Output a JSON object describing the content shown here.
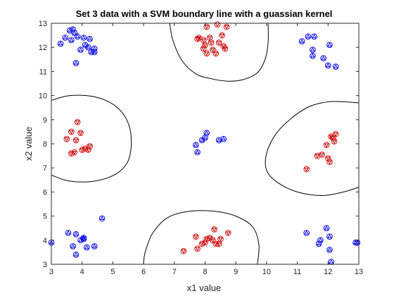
{
  "chart_data": {
    "type": "scatter",
    "title": "Set 3 data with a SVM boundary line with a guassian kernel",
    "xlabel": "x1 value",
    "ylabel": "x2 value",
    "xlim": [
      3,
      13
    ],
    "ylim": [
      3,
      13
    ],
    "xticks": [
      "3",
      "4",
      "5",
      "6",
      "7",
      "8",
      "9",
      "10",
      "11",
      "12",
      "13"
    ],
    "yticks": [
      "3",
      "4",
      "5",
      "6",
      "7",
      "8",
      "9",
      "10",
      "11",
      "12",
      "13"
    ],
    "grid": false,
    "legend": "none",
    "colors": {
      "blue_edge": "#0000ff",
      "blue_marker": "#0000cd",
      "red_edge": "#ff0000",
      "red_marker": "#8b0000",
      "boundary": "#000000"
    },
    "series": [
      {
        "class": "blue",
        "points": [
          [
            3.6,
            12.7
          ],
          [
            3.7,
            12.75
          ],
          [
            3.75,
            12.6
          ],
          [
            3.85,
            12.45
          ],
          [
            3.45,
            12.4
          ],
          [
            3.3,
            12.15
          ],
          [
            3.65,
            12.3
          ],
          [
            4.05,
            12.4
          ],
          [
            4.25,
            12.35
          ],
          [
            3.95,
            11.9
          ],
          [
            4.1,
            12.1
          ],
          [
            4.2,
            12.0
          ],
          [
            4.3,
            11.8
          ],
          [
            4.4,
            11.8
          ],
          [
            4.4,
            11.95
          ],
          [
            3.8,
            11.35
          ],
          [
            11.15,
            12.25
          ],
          [
            11.35,
            12.45
          ],
          [
            11.55,
            12.45
          ],
          [
            11.5,
            11.9
          ],
          [
            11.5,
            11.65
          ],
          [
            12.05,
            12.1
          ],
          [
            11.85,
            11.55
          ],
          [
            12.0,
            11.25
          ],
          [
            12.25,
            11.2
          ],
          [
            7.7,
            7.95
          ],
          [
            7.75,
            7.65
          ],
          [
            7.9,
            8.15
          ],
          [
            8.0,
            8.25
          ],
          [
            8.05,
            8.45
          ],
          [
            8.45,
            8.15
          ],
          [
            8.6,
            8.2
          ],
          [
            3.0,
            3.9
          ],
          [
            3.55,
            4.3
          ],
          [
            3.7,
            3.75
          ],
          [
            3.8,
            3.4
          ],
          [
            3.8,
            4.25
          ],
          [
            3.95,
            4.0
          ],
          [
            4.05,
            4.1
          ],
          [
            4.05,
            4.05
          ],
          [
            4.15,
            3.7
          ],
          [
            4.4,
            3.75
          ],
          [
            4.65,
            4.9
          ],
          [
            11.3,
            4.3
          ],
          [
            11.7,
            3.85
          ],
          [
            11.75,
            4.0
          ],
          [
            11.95,
            4.5
          ],
          [
            12.05,
            4.15
          ],
          [
            12.05,
            3.6
          ],
          [
            12.1,
            3.1
          ],
          [
            12.9,
            3.9
          ],
          [
            12.95,
            3.9
          ]
        ]
      },
      {
        "class": "red",
        "points": [
          [
            7.75,
            12.35
          ],
          [
            7.8,
            12.4
          ],
          [
            7.95,
            12.3
          ],
          [
            8.0,
            12.1
          ],
          [
            7.95,
            11.95
          ],
          [
            8.05,
            11.75
          ],
          [
            8.15,
            12.4
          ],
          [
            8.2,
            12.2
          ],
          [
            8.25,
            11.9
          ],
          [
            8.35,
            11.75
          ],
          [
            8.4,
            12.95
          ],
          [
            8.45,
            12.2
          ],
          [
            8.55,
            12.5
          ],
          [
            8.6,
            12.05
          ],
          [
            8.7,
            12.85
          ],
          [
            8.65,
            11.95
          ],
          [
            8.05,
            12.85
          ],
          [
            3.5,
            8.2
          ],
          [
            3.65,
            8.5
          ],
          [
            3.65,
            7.6
          ],
          [
            3.75,
            7.65
          ],
          [
            3.8,
            8.15
          ],
          [
            3.85,
            8.9
          ],
          [
            3.95,
            8.45
          ],
          [
            4.0,
            7.75
          ],
          [
            4.1,
            7.8
          ],
          [
            4.2,
            7.75
          ],
          [
            4.25,
            7.9
          ],
          [
            11.3,
            6.95
          ],
          [
            11.65,
            7.5
          ],
          [
            11.8,
            7.55
          ],
          [
            11.95,
            7.95
          ],
          [
            12.0,
            7.4
          ],
          [
            12.05,
            7.25
          ],
          [
            12.1,
            8.3
          ],
          [
            12.15,
            8.25
          ],
          [
            12.2,
            8.1
          ],
          [
            12.25,
            8.4
          ],
          [
            7.3,
            3.55
          ],
          [
            7.7,
            4.15
          ],
          [
            7.75,
            3.65
          ],
          [
            7.9,
            3.85
          ],
          [
            8.0,
            3.9
          ],
          [
            8.05,
            4.05
          ],
          [
            8.15,
            4.1
          ],
          [
            8.3,
            4.45
          ],
          [
            8.35,
            3.85
          ],
          [
            8.45,
            3.85
          ],
          [
            8.5,
            4.05
          ],
          [
            8.75,
            4.3
          ],
          [
            8.25,
            4.0
          ]
        ]
      }
    ],
    "boundaries": [
      [
        [
          6.85,
          13.0
        ],
        [
          6.95,
          12.3
        ],
        [
          7.25,
          11.45
        ],
        [
          7.7,
          10.9
        ],
        [
          8.2,
          10.7
        ],
        [
          8.7,
          10.6
        ],
        [
          9.2,
          10.65
        ],
        [
          9.7,
          10.95
        ],
        [
          9.95,
          11.5
        ],
        [
          10.05,
          12.2
        ],
        [
          10.05,
          13.0
        ]
      ],
      [
        [
          3.0,
          9.8
        ],
        [
          3.6,
          10.0
        ],
        [
          4.4,
          9.95
        ],
        [
          5.05,
          9.6
        ],
        [
          5.45,
          9.0
        ],
        [
          5.6,
          8.2
        ],
        [
          5.5,
          7.3
        ],
        [
          5.1,
          6.75
        ],
        [
          4.4,
          6.45
        ],
        [
          3.6,
          6.45
        ],
        [
          3.0,
          6.7
        ]
      ],
      [
        [
          13.0,
          9.7
        ],
        [
          12.1,
          9.75
        ],
        [
          11.4,
          9.55
        ],
        [
          10.8,
          9.05
        ],
        [
          10.3,
          8.4
        ],
        [
          10.0,
          7.6
        ],
        [
          10.0,
          6.9
        ],
        [
          10.35,
          6.4
        ],
        [
          11.0,
          6.0
        ],
        [
          11.8,
          5.85
        ],
        [
          12.5,
          6.0
        ],
        [
          13.0,
          6.2
        ]
      ],
      [
        [
          6.0,
          3.0
        ],
        [
          6.05,
          3.5
        ],
        [
          6.3,
          4.3
        ],
        [
          6.8,
          4.95
        ],
        [
          7.5,
          5.2
        ],
        [
          8.3,
          5.2
        ],
        [
          9.0,
          5.0
        ],
        [
          9.55,
          4.55
        ],
        [
          9.75,
          3.8
        ],
        [
          9.7,
          3.0
        ]
      ]
    ]
  }
}
